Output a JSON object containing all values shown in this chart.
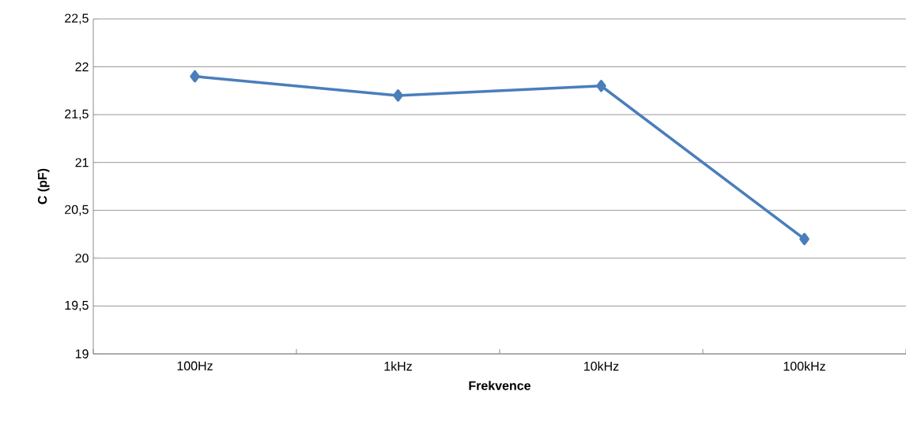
{
  "chart_data": {
    "type": "line",
    "xlabel": "Frekvence",
    "ylabel": "C (pF)",
    "categories": [
      "100Hz",
      "1kHz",
      "10kHz",
      "100kHz"
    ],
    "series": [
      {
        "color": "#4a7ebb",
        "values": [
          21.9,
          21.7,
          21.8,
          20.2
        ]
      }
    ],
    "ylim": [
      19,
      22.5
    ],
    "yticks": [
      19,
      {
        "value": 19.5,
        "label": "19,5"
      },
      20,
      {
        "value": 20.5,
        "label": "20,5"
      },
      21,
      {
        "value": 21.5,
        "label": "21,5"
      },
      22,
      {
        "value": 22.5,
        "label": "22,5"
      }
    ],
    "grid": "y",
    "marker": "diamond",
    "line_style": "solid"
  }
}
